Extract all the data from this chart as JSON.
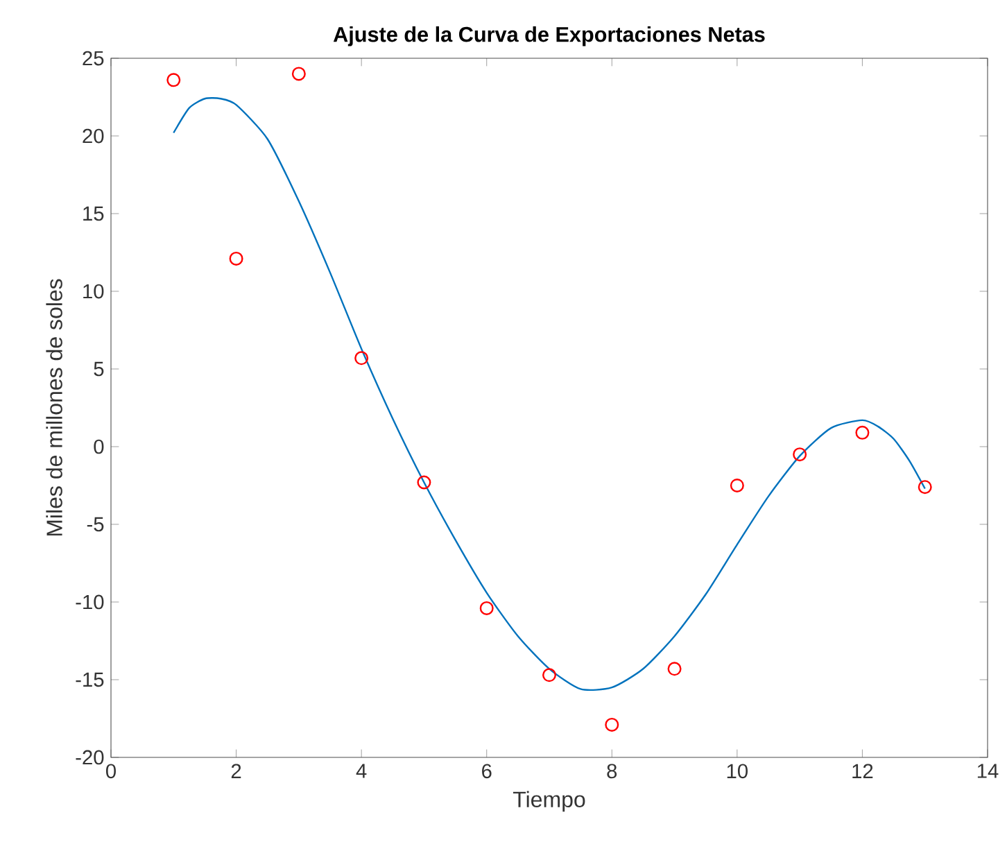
{
  "chart_data": {
    "type": "scatter",
    "title": "Ajuste de la Curva de Exportaciones Netas",
    "xlabel": "Tiempo",
    "ylabel": "Miles de millones de soles",
    "xlim": [
      0,
      14
    ],
    "ylim": [
      -20,
      25
    ],
    "xticks": [
      0,
      2,
      4,
      6,
      8,
      10,
      12,
      14
    ],
    "yticks": [
      -20,
      -15,
      -10,
      -5,
      0,
      5,
      10,
      15,
      20,
      25
    ],
    "grid": false,
    "series": [
      {
        "color": "#ff0000",
        "marker": "circle",
        "x": [
          1,
          2,
          3,
          4,
          5,
          6,
          7,
          8,
          9,
          10,
          11,
          12,
          13
        ],
        "values": [
          23.6,
          12.1,
          24.0,
          5.7,
          -2.3,
          -10.4,
          -14.7,
          -17.9,
          -14.3,
          -2.5,
          -0.5,
          0.9,
          -2.6
        ]
      },
      {
        "type": "line",
        "color": "#0072bd",
        "marker": "none",
        "line_style": "solid",
        "x": [
          1,
          1.25,
          1.5,
          1.75,
          2,
          2.5,
          3,
          3.5,
          4,
          4.5,
          5,
          5.5,
          6,
          6.5,
          7,
          7.5,
          8,
          8.5,
          9,
          9.5,
          10,
          10.5,
          11,
          11.5,
          12,
          12.25,
          12.5,
          12.75,
          13
        ],
        "values": [
          20.2,
          21.8,
          22.4,
          22.4,
          22.0,
          19.8,
          15.8,
          11.2,
          6.3,
          1.8,
          -2.3,
          -6.0,
          -9.4,
          -12.2,
          -14.3,
          -15.6,
          -15.5,
          -14.3,
          -12.2,
          -9.5,
          -6.3,
          -3.2,
          -0.6,
          1.2,
          1.7,
          1.3,
          0.5,
          -0.9,
          -2.7
        ]
      }
    ]
  }
}
